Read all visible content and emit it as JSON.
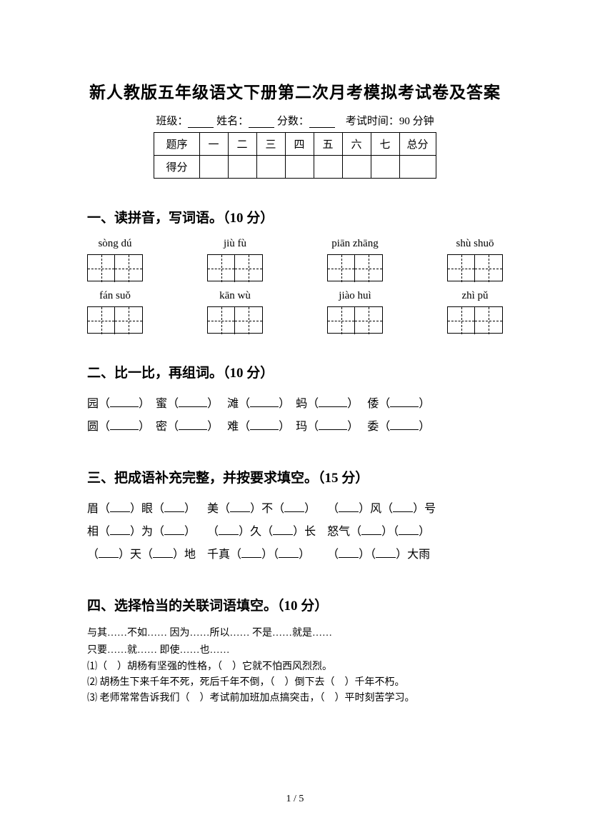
{
  "title": "新人教版五年级语文下册第二次月考模拟考试卷及答案",
  "meta": {
    "class_label": "班级：",
    "name_label": "姓名：",
    "score_label": "分数：",
    "time_label": "考试时间：90 分钟"
  },
  "score_table": {
    "row_header": "题序",
    "cols": [
      "一",
      "二",
      "三",
      "四",
      "五",
      "六",
      "七",
      "总分"
    ],
    "score_row": "得分"
  },
  "section1": {
    "title": "一、读拼音，写词语。（10 分）",
    "row1": [
      {
        "pinyin": "sòng dú",
        "cells": 2
      },
      {
        "pinyin": "jiù fù",
        "cells": 2
      },
      {
        "pinyin": "piān zhāng",
        "cells": 2
      },
      {
        "pinyin": "shù shuō",
        "cells": 2
      }
    ],
    "row2": [
      {
        "pinyin": "fán suǒ",
        "cells": 2
      },
      {
        "pinyin": "kān wù",
        "cells": 2
      },
      {
        "pinyin": "jiào huì",
        "cells": 2
      },
      {
        "pinyin": "zhì pǔ",
        "cells": 2
      }
    ]
  },
  "section2": {
    "title": "二、比一比，再组词。（10 分）",
    "rows": [
      [
        "园",
        "蜜",
        "滩",
        "蚂",
        "倭"
      ],
      [
        "圆",
        "密",
        "难",
        "玛",
        "委"
      ]
    ]
  },
  "section3": {
    "title": "三、把成语补充完整，并按要求填空。（15 分）",
    "lines": [
      [
        "眉（",
        "）眼（",
        "）",
        "美（",
        "）不（",
        "）",
        "（",
        "）风（",
        "）号"
      ],
      [
        "相（",
        "）为（",
        "）",
        "（",
        "）久（",
        "）长",
        "怒气（",
        "）（",
        "）"
      ],
      [
        "（",
        "）天（",
        "）地",
        "千真（",
        "）（",
        "）",
        "（",
        "）（",
        "）大雨"
      ]
    ]
  },
  "section4": {
    "title": "四、选择恰当的关联词语填空。（10 分）",
    "connectives": [
      "与其……不如…… 因为……所以…… 不是……就是……",
      " 只要……就…… 即使……也……"
    ],
    "items": [
      "⑴（　）胡杨有坚强的性格，（　）它就不怕西风烈烈。",
      "⑵ 胡杨生下来千年不死，死后千年不倒，（　）倒下去（　）千年不朽。",
      "⑶ 老师常常告诉我们（　）考试前加班加点搞突击，（　）平时刻苦学习。"
    ]
  },
  "footer": "1 / 5"
}
